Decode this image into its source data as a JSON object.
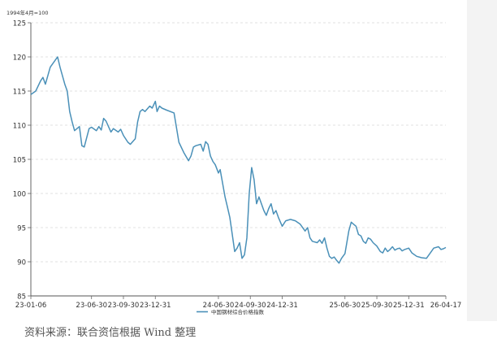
{
  "chart_data": {
    "type": "line",
    "unit_note": "1994年4月=100",
    "ylim": [
      85,
      125
    ],
    "y_ticks": [
      85,
      90,
      95,
      100,
      105,
      110,
      115,
      120,
      125
    ],
    "x_ticks": [
      {
        "label": "23-01-06",
        "date": "2023-01-06"
      },
      {
        "label": "23-06-30",
        "date": "2023-06-30"
      },
      {
        "label": "23-09-30",
        "date": "2023-09-30"
      },
      {
        "label": "23-12-31",
        "date": "2023-12-31"
      },
      {
        "label": "24-06-30",
        "date": "2024-06-30"
      },
      {
        "label": "24-09-30",
        "date": "2024-09-30"
      },
      {
        "label": "24-12-31",
        "date": "2024-12-31"
      },
      {
        "label": "25-06-30",
        "date": "2025-06-30"
      },
      {
        "label": "25-09-30",
        "date": "2025-09-30"
      },
      {
        "label": "25-12-31",
        "date": "2025-12-31"
      },
      {
        "label": "26-04-17",
        "date": "2026-04-17"
      }
    ],
    "grid": true,
    "legend_position": "bottom",
    "series": [
      {
        "name": "中国钢材综合价格指数",
        "color": "#4a90b8",
        "points": [
          [
            "2023-01-06",
            114.5
          ],
          [
            "2023-01-20",
            115.0
          ],
          [
            "2023-02-03",
            116.5
          ],
          [
            "2023-02-10",
            117.0
          ],
          [
            "2023-02-17",
            116.0
          ],
          [
            "2023-03-03",
            118.5
          ],
          [
            "2023-03-17",
            119.5
          ],
          [
            "2023-03-24",
            120.0
          ],
          [
            "2023-03-31",
            118.5
          ],
          [
            "2023-04-14",
            116.0
          ],
          [
            "2023-04-21",
            115.0
          ],
          [
            "2023-04-28",
            112.0
          ],
          [
            "2023-05-05",
            110.5
          ],
          [
            "2023-05-12",
            109.2
          ],
          [
            "2023-05-26",
            109.8
          ],
          [
            "2023-06-02",
            107.0
          ],
          [
            "2023-06-09",
            106.8
          ],
          [
            "2023-06-23",
            109.5
          ],
          [
            "2023-06-30",
            109.7
          ],
          [
            "2023-07-14",
            109.2
          ],
          [
            "2023-07-21",
            109.8
          ],
          [
            "2023-07-28",
            109.3
          ],
          [
            "2023-08-04",
            111.0
          ],
          [
            "2023-08-11",
            110.6
          ],
          [
            "2023-08-25",
            109.0
          ],
          [
            "2023-09-01",
            109.5
          ],
          [
            "2023-09-15",
            109.0
          ],
          [
            "2023-09-22",
            109.4
          ],
          [
            "2023-09-30",
            108.5
          ],
          [
            "2023-10-13",
            107.5
          ],
          [
            "2023-10-20",
            107.2
          ],
          [
            "2023-11-03",
            108.0
          ],
          [
            "2023-11-10",
            110.5
          ],
          [
            "2023-11-17",
            112.0
          ],
          [
            "2023-11-24",
            112.3
          ],
          [
            "2023-12-01",
            112.0
          ],
          [
            "2023-12-15",
            112.8
          ],
          [
            "2023-12-22",
            112.5
          ],
          [
            "2023-12-31",
            113.5
          ],
          [
            "2024-01-05",
            112.0
          ],
          [
            "2024-01-12",
            112.8
          ],
          [
            "2024-01-19",
            112.5
          ],
          [
            "2024-02-02",
            112.2
          ],
          [
            "2024-02-23",
            111.8
          ],
          [
            "2024-03-08",
            107.5
          ],
          [
            "2024-03-22",
            106.0
          ],
          [
            "2024-04-05",
            104.8
          ],
          [
            "2024-04-12",
            105.5
          ],
          [
            "2024-04-19",
            106.8
          ],
          [
            "2024-04-26",
            107.0
          ],
          [
            "2024-05-10",
            107.2
          ],
          [
            "2024-05-17",
            106.2
          ],
          [
            "2024-05-24",
            107.6
          ],
          [
            "2024-05-31",
            107.2
          ],
          [
            "2024-06-07",
            105.5
          ],
          [
            "2024-06-14",
            104.7
          ],
          [
            "2024-06-21",
            104.2
          ],
          [
            "2024-06-30",
            103.0
          ],
          [
            "2024-07-05",
            103.5
          ],
          [
            "2024-07-12",
            101.5
          ],
          [
            "2024-07-19",
            99.5
          ],
          [
            "2024-07-26",
            98.0
          ],
          [
            "2024-08-02",
            96.5
          ],
          [
            "2024-08-09",
            94.0
          ],
          [
            "2024-08-16",
            91.5
          ],
          [
            "2024-08-23",
            92.0
          ],
          [
            "2024-08-30",
            92.8
          ],
          [
            "2024-09-06",
            90.5
          ],
          [
            "2024-09-13",
            91.0
          ],
          [
            "2024-09-20",
            93.5
          ],
          [
            "2024-09-27",
            100.0
          ],
          [
            "2024-10-04",
            103.8
          ],
          [
            "2024-10-11",
            102.0
          ],
          [
            "2024-10-18",
            98.5
          ],
          [
            "2024-10-25",
            99.5
          ],
          [
            "2024-11-01",
            98.5
          ],
          [
            "2024-11-08",
            97.5
          ],
          [
            "2024-11-15",
            96.8
          ],
          [
            "2024-11-22",
            97.8
          ],
          [
            "2024-11-29",
            98.5
          ],
          [
            "2024-12-06",
            97.0
          ],
          [
            "2024-12-13",
            97.5
          ],
          [
            "2024-12-20",
            96.5
          ],
          [
            "2024-12-31",
            95.2
          ],
          [
            "2025-01-10",
            96.0
          ],
          [
            "2025-01-24",
            96.2
          ],
          [
            "2025-02-07",
            96.0
          ],
          [
            "2025-02-21",
            95.5
          ],
          [
            "2025-03-07",
            94.5
          ],
          [
            "2025-03-14",
            95.0
          ],
          [
            "2025-03-21",
            93.5
          ],
          [
            "2025-03-28",
            93.0
          ],
          [
            "2025-04-11",
            92.8
          ],
          [
            "2025-04-18",
            93.2
          ],
          [
            "2025-04-25",
            92.7
          ],
          [
            "2025-05-02",
            93.5
          ],
          [
            "2025-05-09",
            92.0
          ],
          [
            "2025-05-16",
            90.8
          ],
          [
            "2025-05-23",
            90.5
          ],
          [
            "2025-05-30",
            90.7
          ],
          [
            "2025-06-06",
            90.2
          ],
          [
            "2025-06-13",
            89.8
          ],
          [
            "2025-06-20",
            90.5
          ],
          [
            "2025-06-30",
            91.2
          ],
          [
            "2025-07-11",
            94.5
          ],
          [
            "2025-07-18",
            95.8
          ],
          [
            "2025-07-25",
            95.5
          ],
          [
            "2025-08-01",
            95.2
          ],
          [
            "2025-08-08",
            94.0
          ],
          [
            "2025-08-15",
            93.8
          ],
          [
            "2025-08-22",
            93.0
          ],
          [
            "2025-08-29",
            92.7
          ],
          [
            "2025-09-05",
            93.5
          ],
          [
            "2025-09-12",
            93.3
          ],
          [
            "2025-09-19",
            92.8
          ],
          [
            "2025-09-30",
            92.3
          ],
          [
            "2025-10-10",
            91.5
          ],
          [
            "2025-10-17",
            91.3
          ],
          [
            "2025-10-24",
            92.0
          ],
          [
            "2025-10-31",
            91.5
          ],
          [
            "2025-11-07",
            91.8
          ],
          [
            "2025-11-14",
            92.2
          ],
          [
            "2025-11-21",
            91.7
          ],
          [
            "2025-11-28",
            91.9
          ],
          [
            "2025-12-05",
            92.0
          ],
          [
            "2025-12-12",
            91.6
          ],
          [
            "2025-12-19",
            91.8
          ],
          [
            "2025-12-31",
            92.0
          ],
          [
            "2026-01-09",
            91.3
          ],
          [
            "2026-01-23",
            90.8
          ],
          [
            "2026-02-06",
            90.6
          ],
          [
            "2026-02-20",
            90.5
          ],
          [
            "2026-03-06",
            91.5
          ],
          [
            "2026-03-13",
            92.0
          ],
          [
            "2026-03-27",
            92.2
          ],
          [
            "2026-04-03",
            91.8
          ],
          [
            "2026-04-10",
            91.9
          ],
          [
            "2026-04-17",
            92.1
          ]
        ]
      }
    ]
  },
  "source_text": "资料来源：联合资信根据 Wind 整理"
}
